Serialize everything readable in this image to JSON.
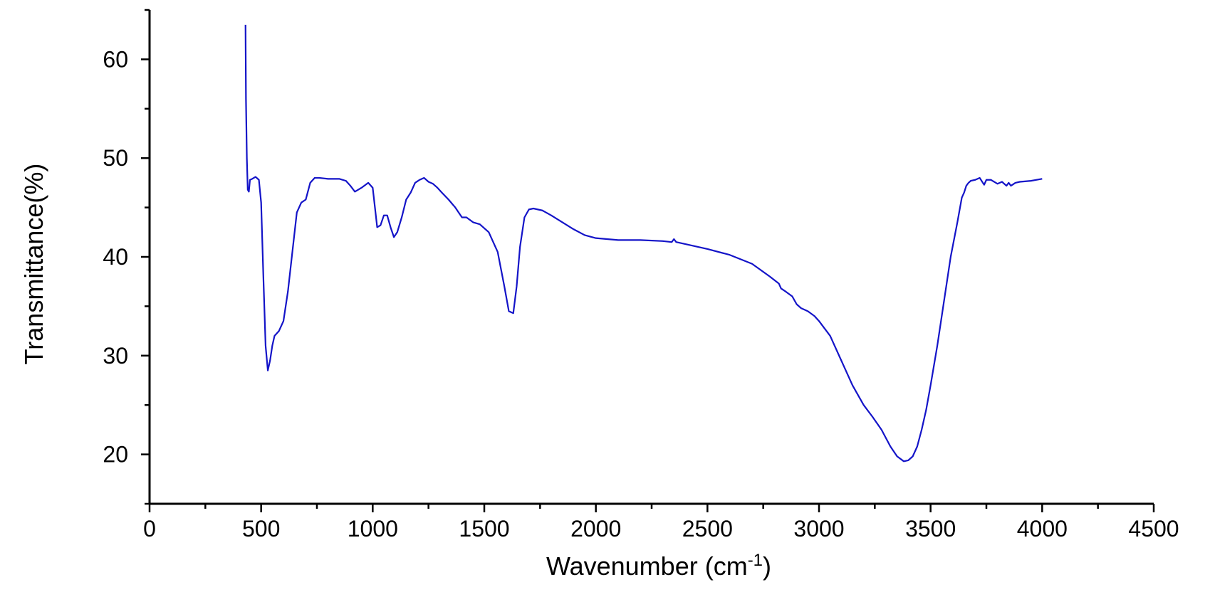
{
  "chart_data": {
    "type": "line",
    "title": "",
    "xlabel": "Wavenumber (cm",
    "xlabel_sup": "-1",
    "xlabel_end": ")",
    "ylabel": "Transmittance(%)",
    "xlim": [
      0,
      4500
    ],
    "ylim": [
      15,
      65
    ],
    "x_major_ticks": [
      0,
      500,
      1000,
      1500,
      2000,
      2500,
      3000,
      3500,
      4000,
      4500
    ],
    "x_tick_labels": [
      "0",
      "500",
      "1000",
      "1500",
      "2000",
      "2500",
      "3000",
      "3500",
      "4000",
      "4500"
    ],
    "y_major_ticks": [
      20,
      30,
      40,
      50,
      60
    ],
    "y_tick_labels": [
      "20",
      "30",
      "40",
      "50",
      "60"
    ],
    "grid": false,
    "legend": "none",
    "colors": {
      "series": "#1414c8",
      "axis": "#000000"
    },
    "series": [
      {
        "color": "#1414c8",
        "x": [
          430,
          432,
          436,
          440,
          445,
          450,
          460,
          475,
          490,
          500,
          510,
          520,
          530,
          540,
          550,
          560,
          580,
          600,
          620,
          640,
          660,
          680,
          700,
          720,
          740,
          760,
          800,
          850,
          880,
          900,
          920,
          950,
          980,
          1000,
          1010,
          1020,
          1035,
          1050,
          1065,
          1080,
          1095,
          1110,
          1130,
          1150,
          1170,
          1190,
          1210,
          1230,
          1250,
          1270,
          1290,
          1310,
          1340,
          1370,
          1400,
          1420,
          1450,
          1480,
          1520,
          1560,
          1590,
          1610,
          1630,
          1645,
          1660,
          1680,
          1700,
          1720,
          1760,
          1800,
          1850,
          1900,
          1950,
          2000,
          2050,
          2100,
          2200,
          2300,
          2340,
          2350,
          2360,
          2400,
          2500,
          2600,
          2700,
          2780,
          2820,
          2830,
          2850,
          2880,
          2900,
          2920,
          2950,
          2980,
          3000,
          3050,
          3100,
          3150,
          3200,
          3240,
          3280,
          3320,
          3350,
          3380,
          3400,
          3420,
          3440,
          3460,
          3480,
          3500,
          3530,
          3560,
          3590,
          3620,
          3640,
          3650,
          3660,
          3670,
          3680,
          3700,
          3720,
          3740,
          3750,
          3770,
          3800,
          3820,
          3840,
          3850,
          3860,
          3880,
          3900,
          3950,
          4000
        ],
        "y": [
          63.5,
          56.0,
          50.0,
          46.8,
          46.6,
          47.8,
          47.9,
          48.1,
          47.8,
          45.5,
          38.0,
          31.0,
          28.5,
          29.5,
          31.0,
          32.0,
          32.5,
          33.5,
          36.5,
          40.5,
          44.5,
          45.5,
          45.8,
          47.5,
          48.0,
          48.0,
          47.9,
          47.9,
          47.7,
          47.2,
          46.6,
          47.0,
          47.5,
          47.0,
          45.0,
          43.0,
          43.2,
          44.2,
          44.2,
          43.0,
          42.0,
          42.5,
          44.0,
          45.8,
          46.5,
          47.5,
          47.8,
          48.0,
          47.6,
          47.4,
          47.0,
          46.5,
          45.8,
          45.0,
          44.0,
          44.0,
          43.5,
          43.3,
          42.5,
          40.5,
          37.0,
          34.5,
          34.3,
          37.0,
          41.0,
          44.0,
          44.8,
          44.9,
          44.7,
          44.2,
          43.5,
          42.8,
          42.2,
          41.9,
          41.8,
          41.7,
          41.7,
          41.6,
          41.5,
          41.8,
          41.5,
          41.3,
          40.8,
          40.2,
          39.3,
          38.0,
          37.3,
          36.8,
          36.5,
          36.0,
          35.2,
          34.8,
          34.5,
          34.0,
          33.5,
          32.0,
          29.5,
          27.0,
          25.0,
          23.8,
          22.5,
          20.8,
          19.8,
          19.3,
          19.4,
          19.8,
          20.8,
          22.5,
          24.5,
          27.0,
          31.0,
          35.5,
          40.0,
          43.5,
          46.0,
          46.5,
          47.2,
          47.5,
          47.7,
          47.8,
          48.0,
          47.3,
          47.8,
          47.8,
          47.4,
          47.6,
          47.2,
          47.5,
          47.2,
          47.5,
          47.6,
          47.7,
          47.9
        ]
      }
    ]
  }
}
